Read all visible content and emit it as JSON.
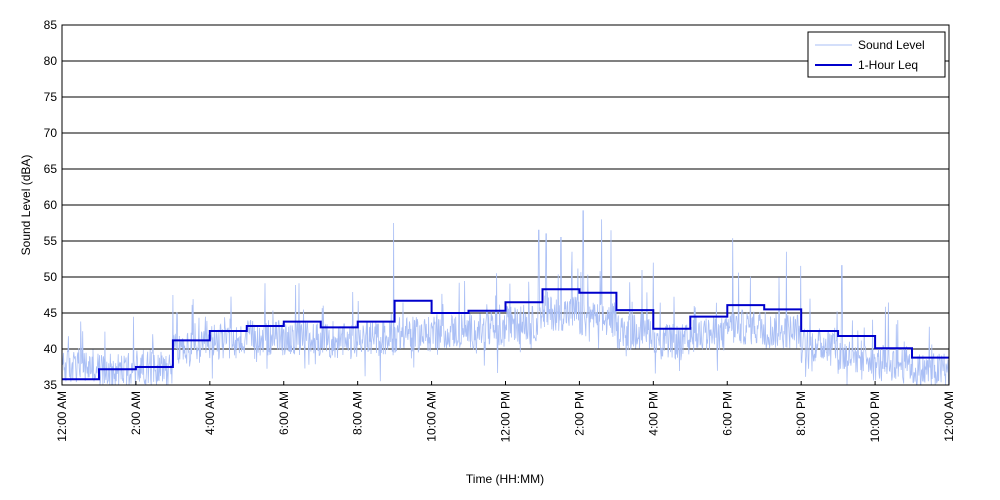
{
  "chart_data": {
    "type": "line",
    "xlabel": "Time (HH:MM)",
    "ylabel": "Sound Level (dBA)",
    "ylim": [
      35,
      85
    ],
    "yticks": [
      35,
      40,
      45,
      50,
      55,
      60,
      65,
      70,
      75,
      80,
      85
    ],
    "xlim": [
      0,
      24
    ],
    "x_units": "hours since 12:00 AM",
    "xtick_labels": [
      "12:00 AM",
      "2:00 AM",
      "4:00 AM",
      "6:00 AM",
      "8:00 AM",
      "10:00 AM",
      "12:00 PM",
      "2:00 PM",
      "4:00 PM",
      "6:00 PM",
      "8:00 PM",
      "10:00 PM",
      "12:00 AM"
    ],
    "grid": "horizontal",
    "legend_position": "top-right",
    "series": [
      {
        "name": "Sound Level",
        "color": "#aabff5",
        "hourly_base": [
          37.5,
          37.0,
          37.5,
          40.0,
          41.0,
          41.5,
          41.5,
          41.0,
          41.5,
          42.0,
          42.5,
          42.5,
          43.5,
          45.0,
          44.0,
          42.5,
          41.0,
          42.0,
          43.0,
          42.5,
          40.5,
          39.0,
          38.0,
          37.0
        ],
        "peaks": [
          {
            "x": 8.97,
            "y": 57.5
          },
          {
            "x": 12.9,
            "y": 56.5
          },
          {
            "x": 13.1,
            "y": 56.0
          },
          {
            "x": 13.5,
            "y": 55.5
          },
          {
            "x": 13.8,
            "y": 53.5
          },
          {
            "x": 14.1,
            "y": 59.2
          },
          {
            "x": 14.6,
            "y": 58.0
          },
          {
            "x": 14.85,
            "y": 56.5
          },
          {
            "x": 18.15,
            "y": 55.4
          },
          {
            "x": 19.6,
            "y": 53.5
          },
          {
            "x": 21.1,
            "y": 51.6
          },
          {
            "x": 3.0,
            "y": 47.5
          },
          {
            "x": 16.0,
            "y": 52.0
          }
        ]
      },
      {
        "name": "1-Hour Leq",
        "color": "#0000cc",
        "step_values": [
          35.8,
          37.2,
          37.5,
          41.2,
          42.5,
          43.2,
          43.8,
          43.0,
          43.8,
          46.7,
          45.0,
          45.3,
          46.5,
          48.3,
          47.8,
          45.4,
          42.8,
          44.5,
          46.1,
          45.5,
          42.5,
          41.8,
          40.1,
          38.8
        ]
      }
    ]
  }
}
